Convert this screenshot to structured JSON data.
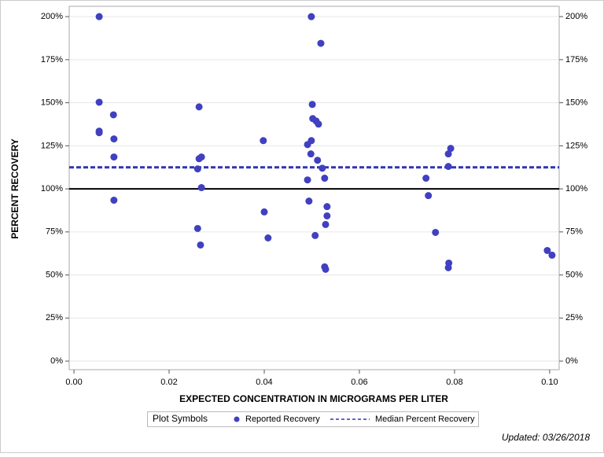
{
  "chart_data": {
    "type": "scatter",
    "xlabel": "EXPECTED CONCENTRATION IN MICROGRAMS PER LITER",
    "ylabel": "PERCENT RECOVERY",
    "xlim": [
      -0.001,
      0.102
    ],
    "ylim": [
      -5,
      206
    ],
    "y2lim": [
      -5,
      206
    ],
    "xticks": [
      {
        "value": 0,
        "label": "0.00"
      },
      {
        "value": 0.02,
        "label": "0.02"
      },
      {
        "value": 0.04,
        "label": "0.04"
      },
      {
        "value": 0.06,
        "label": "0.06"
      },
      {
        "value": 0.08,
        "label": "0.08"
      },
      {
        "value": 0.1,
        "label": "0.10"
      }
    ],
    "yticks": [
      {
        "value": 0,
        "label": "0%"
      },
      {
        "value": 25,
        "label": "25%"
      },
      {
        "value": 50,
        "label": "50%"
      },
      {
        "value": 75,
        "label": "75%"
      },
      {
        "value": 100,
        "label": "100%"
      },
      {
        "value": 125,
        "label": "125%"
      },
      {
        "value": 150,
        "label": "150%"
      },
      {
        "value": 175,
        "label": "175%"
      },
      {
        "value": 200,
        "label": "200%"
      }
    ],
    "y2ticks": [
      {
        "value": 0,
        "label": "0%"
      },
      {
        "value": 25,
        "label": "25%"
      },
      {
        "value": 50,
        "label": "50%"
      },
      {
        "value": 75,
        "label": "75%"
      },
      {
        "value": 100,
        "label": "100%"
      },
      {
        "value": 125,
        "label": "125%"
      },
      {
        "value": 150,
        "label": "150%"
      },
      {
        "value": 175,
        "label": "175%"
      },
      {
        "value": 200,
        "label": "200%"
      }
    ],
    "grid": true,
    "legend_title": "Plot Symbols",
    "series": [
      {
        "name": "Reported Recovery",
        "color": "#4040c0",
        "x": [
          0.0053,
          0.0053,
          0.0053,
          0.0053,
          0.0083,
          0.0084,
          0.0084,
          0.0084,
          0.0263,
          0.0268,
          0.0263,
          0.026,
          0.0268,
          0.026,
          0.0266,
          0.0398,
          0.04,
          0.0408,
          0.0499,
          0.0519,
          0.0501,
          0.0502,
          0.0509,
          0.0514,
          0.0499,
          0.0491,
          0.0498,
          0.0512,
          0.0522,
          0.0527,
          0.0491,
          0.0494,
          0.0532,
          0.0532,
          0.0529,
          0.0507,
          0.0527,
          0.0529,
          0.074,
          0.0745,
          0.076,
          0.0792,
          0.0787,
          0.0787,
          0.0788,
          0.0787,
          0.0995,
          0.1005
        ],
        "y": [
          200,
          150.3,
          133.5,
          132.6,
          143,
          129,
          118.5,
          93.4,
          147.6,
          118.5,
          117.5,
          111.6,
          100.7,
          77,
          67.4,
          128,
          86.6,
          71.5,
          200,
          184.5,
          149,
          140.8,
          139.4,
          137.6,
          128,
          125.7,
          120.3,
          116.6,
          112,
          106.2,
          105.2,
          92.9,
          89.7,
          84.3,
          79.3,
          72.9,
          54.7,
          53.3,
          106.2,
          96.1,
          74.7,
          123.5,
          120.3,
          113,
          56.9,
          54.2,
          64.2,
          61.5
        ]
      }
    ],
    "median": {
      "name": "Median Percent Recovery",
      "value": 112.5,
      "color": "#3333b0"
    },
    "reference_line": 100,
    "annotation": "Updated: 03/26/2018"
  }
}
